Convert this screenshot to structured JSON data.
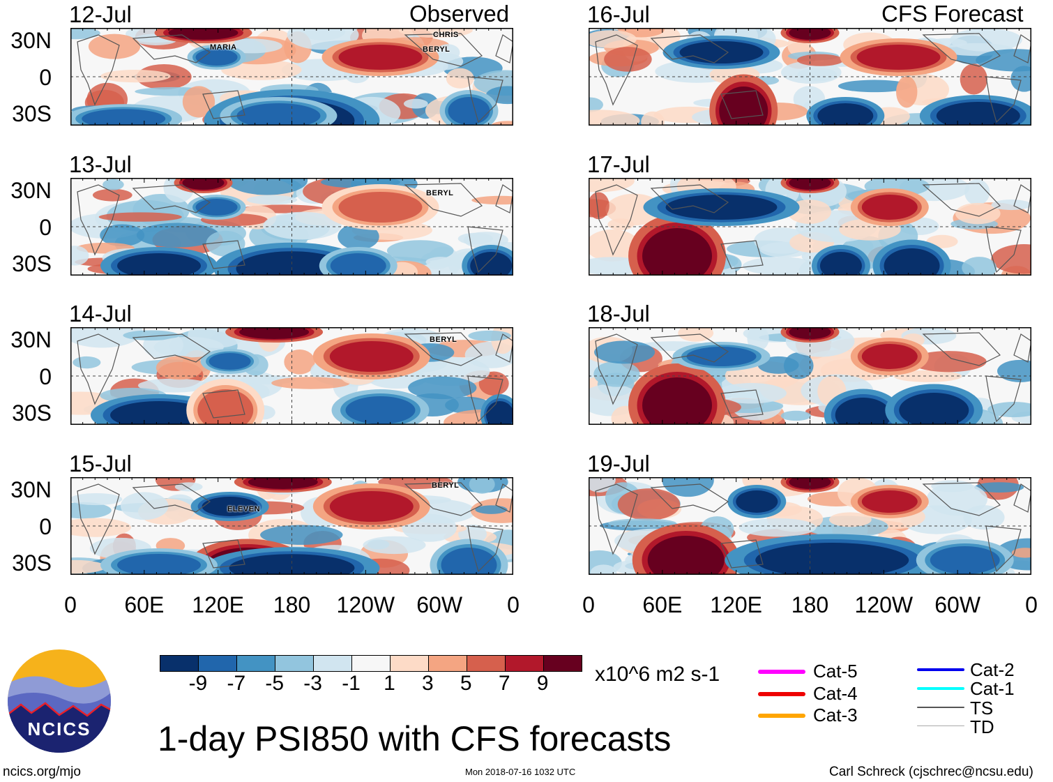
{
  "title": "1-day PSI850 with CFS forecasts",
  "observed_label": "Observed",
  "forecast_label": "CFS Forecast",
  "lat_labels": [
    "30N",
    "0",
    "30S"
  ],
  "lon_labels": [
    "0",
    "60E",
    "120E",
    "180",
    "120W",
    "60W",
    "0"
  ],
  "panels_observed": [
    {
      "date": "12-Jul",
      "storms": [
        "MARIA",
        "CHRIS",
        "BERYL"
      ]
    },
    {
      "date": "13-Jul",
      "storms": [
        "BERYL"
      ]
    },
    {
      "date": "14-Jul",
      "storms": [
        "BERYL"
      ]
    },
    {
      "date": "15-Jul",
      "storms": [
        "BERYL",
        "ELEVEN"
      ]
    }
  ],
  "panels_forecast": [
    {
      "date": "16-Jul"
    },
    {
      "date": "17-Jul"
    },
    {
      "date": "18-Jul"
    },
    {
      "date": "19-Jul"
    }
  ],
  "colorbar": {
    "colors": [
      "#08306b",
      "#2166ac",
      "#4393c3",
      "#92c5de",
      "#d1e5f0",
      "#f7f7f7",
      "#fddbc7",
      "#f4a582",
      "#d6604d",
      "#b2182b",
      "#67001f"
    ],
    "ticks": [
      "-9",
      "-7",
      "-5",
      "-3",
      "-1",
      "1",
      "3",
      "5",
      "7",
      "9"
    ],
    "units": "x10^6 m2 s-1"
  },
  "legend": [
    {
      "label": "Cat-5",
      "color": "#ff00ff"
    },
    {
      "label": "Cat-4",
      "color": "#ee0000"
    },
    {
      "label": "Cat-3",
      "color": "#ffa500"
    },
    {
      "label": "Cat-2",
      "color": "#0000ee"
    },
    {
      "label": "Cat-1",
      "color": "#00ffff"
    },
    {
      "label": "TS",
      "color": "#555555"
    },
    {
      "label": "TD",
      "color": "#aaaaaa"
    }
  ],
  "logo_text": "NCICS",
  "footer": {
    "left": "ncics.org/mjo",
    "center": "Mon 2018-07-16 1032 UTC",
    "right": "Carl Schreck (cjschrec@ncsu.edu)"
  }
}
